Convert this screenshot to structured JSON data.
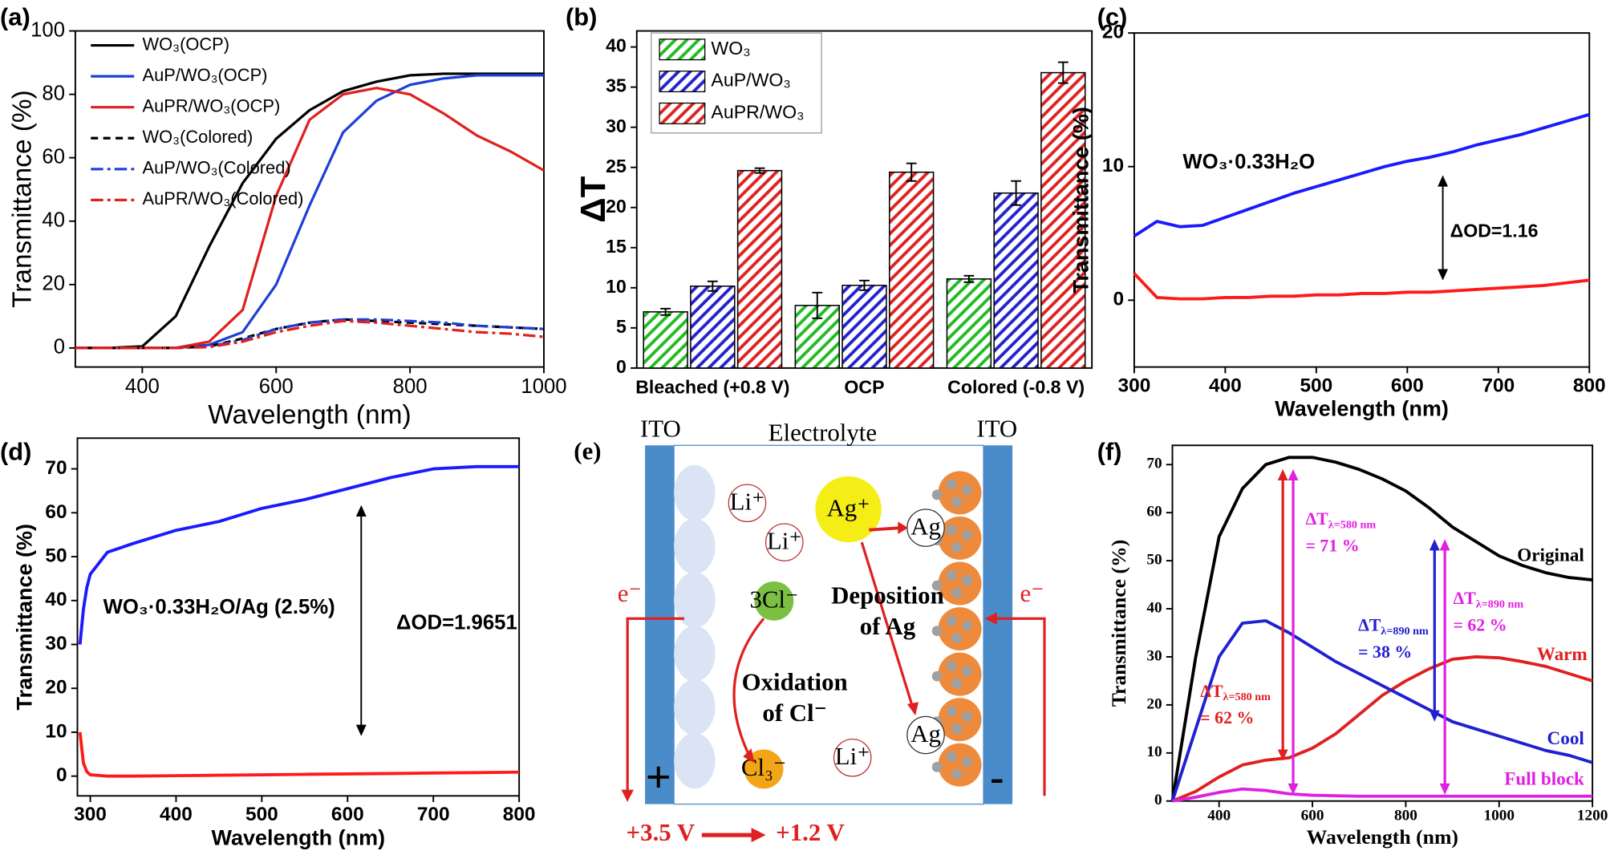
{
  "chart_data": [
    {
      "type": "line",
      "panel": "(a)",
      "xlabel": "Wavelength (nm)",
      "ylabel": "Transmittance (%)",
      "x": [
        300,
        350,
        400,
        450,
        500,
        550,
        600,
        650,
        700,
        750,
        800,
        850,
        900,
        950,
        1000
      ],
      "xlim": [
        300,
        1000
      ],
      "xticks": [
        400,
        600,
        800,
        1000
      ],
      "ylim": [
        -6,
        100
      ],
      "yticks": [
        0,
        20,
        40,
        60,
        80,
        100
      ],
      "legend": "upper left",
      "series": [
        {
          "name": "WO₃(OCP)",
          "color": "#000000",
          "dash": "solid",
          "values": [
            0,
            0,
            0.5,
            10,
            32,
            52,
            66,
            75,
            81,
            84,
            86,
            86.5,
            86.5,
            86.5,
            86.5
          ]
        },
        {
          "name": "AuP/WO₃(OCP)",
          "color": "#1f3fd6",
          "dash": "solid",
          "values": [
            0,
            0,
            0,
            0,
            1,
            5,
            20,
            45,
            68,
            78,
            83,
            85,
            86,
            86,
            86
          ]
        },
        {
          "name": "AuPR/WO₃(OCP)",
          "color": "#e0201c",
          "dash": "solid",
          "values": [
            0,
            0,
            0,
            0,
            2,
            12,
            48,
            72,
            80,
            82,
            80,
            74,
            67,
            62,
            56
          ]
        },
        {
          "name": "WO₃(Colored)",
          "color": "#000000",
          "dash": "dash",
          "values": [
            0,
            0,
            0,
            0,
            0.5,
            3,
            6,
            8,
            9,
            8.5,
            8,
            7.5,
            7,
            6.5,
            6
          ]
        },
        {
          "name": "AuP/WO₃(Colored)",
          "color": "#1f3fd6",
          "dash": "dashdot",
          "values": [
            0,
            0,
            0,
            0,
            0.5,
            2.5,
            6,
            8,
            9,
            9,
            8.5,
            8,
            7,
            6.5,
            6
          ]
        },
        {
          "name": "AuPR/WO₃(Colored)",
          "color": "#e0201c",
          "dash": "dashdot",
          "values": [
            0,
            0,
            0,
            0,
            0.3,
            2,
            5,
            7,
            8.5,
            8,
            7,
            6,
            5,
            4.5,
            3.5
          ]
        }
      ]
    },
    {
      "type": "bar",
      "panel": "(b)",
      "ylabel": "ΔT",
      "categories": [
        "Bleached (+0.8 V)",
        "OCP",
        "Colored (-0.8 V)"
      ],
      "ylim": [
        0,
        42
      ],
      "yticks": [
        0,
        5,
        10,
        15,
        20,
        25,
        30,
        35,
        40
      ],
      "legend": "upper left",
      "series": [
        {
          "name": "WO₃",
          "color": "#22bb22",
          "values": [
            7,
            7.8,
            11.1
          ],
          "errors": [
            0.4,
            1.6,
            0.4
          ]
        },
        {
          "name": "AuP/WO₃",
          "color": "#2222cc",
          "values": [
            10.2,
            10.3,
            21.8
          ],
          "errors": [
            0.6,
            0.6,
            1.5
          ]
        },
        {
          "name": "AuPR/WO₃",
          "color": "#dd2222",
          "values": [
            24.6,
            24.4,
            36.8
          ],
          "errors": [
            0.3,
            1.1,
            1.3
          ]
        }
      ]
    },
    {
      "type": "line",
      "panel": "(c)",
      "xlabel": "Wavelength (nm)",
      "ylabel": "Transmittance (%)",
      "x": [
        300,
        325,
        350,
        375,
        400,
        425,
        450,
        475,
        500,
        525,
        550,
        575,
        600,
        625,
        650,
        675,
        700,
        725,
        750,
        775,
        800
      ],
      "xlim": [
        300,
        800
      ],
      "xticks": [
        300,
        400,
        500,
        600,
        700,
        800
      ],
      "ylim": [
        -5,
        20
      ],
      "yticks": [
        0,
        10,
        20
      ],
      "series": [
        {
          "color": "#1a1aff",
          "dash": "solid",
          "values": [
            4.8,
            5.9,
            5.5,
            5.6,
            6.2,
            6.8,
            7.4,
            8.0,
            8.5,
            9.0,
            9.5,
            10.0,
            10.4,
            10.7,
            11.1,
            11.6,
            12.0,
            12.4,
            12.9,
            13.4,
            13.9
          ]
        },
        {
          "color": "#ff1a1a",
          "dash": "solid",
          "values": [
            2.0,
            0.2,
            0.1,
            0.1,
            0.2,
            0.2,
            0.3,
            0.3,
            0.4,
            0.4,
            0.5,
            0.5,
            0.6,
            0.6,
            0.7,
            0.8,
            0.9,
            1.0,
            1.1,
            1.3,
            1.5
          ]
        }
      ],
      "annotations": [
        "WO₃·0.33H₂O",
        "ΔOD=1.16"
      ]
    },
    {
      "type": "line",
      "panel": "(d)",
      "xlabel": "Wavelength (nm)",
      "ylabel": "Transmittance (%)",
      "x": [
        288,
        292,
        296,
        300,
        320,
        350,
        400,
        450,
        500,
        550,
        600,
        650,
        700,
        750,
        800
      ],
      "xlim": [
        285,
        800
      ],
      "xticks": [
        300,
        400,
        500,
        600,
        700,
        800
      ],
      "ylim": [
        -4.5,
        77
      ],
      "yticks": [
        0,
        10,
        20,
        30,
        40,
        50,
        60,
        70
      ],
      "series": [
        {
          "color": "#1a1aff",
          "dash": "solid",
          "values": [
            30,
            38,
            43,
            46,
            51,
            53,
            56,
            58,
            61,
            63,
            65.5,
            68,
            70,
            70.5,
            70.5
          ]
        },
        {
          "color": "#ff1a1a",
          "dash": "solid",
          "values": [
            10,
            3,
            1,
            0.3,
            0,
            0,
            0.1,
            0.2,
            0.3,
            0.4,
            0.5,
            0.6,
            0.7,
            0.8,
            0.9
          ]
        }
      ],
      "annotations": [
        "WO₃·0.33H₂O/Ag (2.5%)",
        "ΔOD=1.9651"
      ]
    },
    {
      "type": "line",
      "panel": "(f)",
      "xlabel": "Wavelength (nm)",
      "ylabel": "Transmittance (%)",
      "x": [
        300,
        350,
        400,
        450,
        500,
        550,
        600,
        650,
        700,
        750,
        800,
        850,
        900,
        950,
        1000,
        1050,
        1100,
        1150,
        1200
      ],
      "xlim": [
        300,
        1200
      ],
      "xticks": [
        400,
        600,
        800,
        1000,
        1200
      ],
      "ylim": [
        0,
        74
      ],
      "yticks": [
        0,
        10,
        20,
        30,
        40,
        50,
        60,
        70
      ],
      "legend": "inline",
      "series": [
        {
          "name": "Original",
          "color": "#000000",
          "dash": "solid",
          "values": [
            0,
            30,
            55,
            65,
            70,
            71.5,
            71.5,
            70.5,
            69,
            67,
            64.5,
            61,
            57,
            54,
            51,
            49,
            47.5,
            46.5,
            46
          ]
        },
        {
          "name": "Warm",
          "color": "#e02020",
          "dash": "solid",
          "values": [
            0,
            2,
            5,
            7.5,
            8.5,
            9,
            11,
            14,
            18,
            22,
            25,
            27.5,
            29.5,
            30,
            29.8,
            29,
            28,
            26.5,
            25
          ]
        },
        {
          "name": "Cool",
          "color": "#2020d0",
          "dash": "solid",
          "values": [
            0,
            15,
            30,
            37,
            37.5,
            35,
            32,
            29,
            26.5,
            24,
            21.5,
            19,
            16.5,
            15,
            13.5,
            12,
            10.5,
            9.5,
            8
          ]
        },
        {
          "name": "Full block",
          "color": "#e020e0",
          "dash": "solid",
          "values": [
            0,
            0.8,
            1.8,
            2.5,
            2.2,
            1.5,
            1.2,
            1.1,
            1,
            1,
            1,
            1,
            1,
            1,
            1,
            1,
            1,
            1,
            1
          ]
        }
      ],
      "annotations": [
        {
          "text": "ΔT",
          "sub": "λ=580 nm",
          "line2": "= 71 %",
          "color": "#e020e0"
        },
        {
          "text": "ΔT",
          "sub": "λ=890 nm",
          "line2": "= 38 %",
          "color": "#2020d0"
        },
        {
          "text": "ΔT",
          "sub": "λ=890 nm",
          "line2": "= 62 %",
          "color": "#e020e0"
        },
        {
          "text": "ΔT",
          "sub": "λ=580 nm",
          "line2": "= 62 %",
          "color": "#e02020"
        }
      ]
    }
  ],
  "diagram": {
    "panel": "(e)",
    "ito_left": "ITO",
    "electrolyte": "Electrolyte",
    "ito_right": "ITO",
    "ions": [
      "Li⁺",
      "Li⁺",
      "Li⁺"
    ],
    "ag_ion": "Ag⁺",
    "ag": [
      "Ag",
      "Ag"
    ],
    "chloride": "3Cl⁻",
    "trichloride": "Cl₃⁻",
    "deposition": [
      "Deposition",
      "of Ag"
    ],
    "oxidation": [
      "Oxidation",
      "of Cl⁻"
    ],
    "electrons": [
      "e⁻",
      "e⁻"
    ],
    "plus": "+",
    "minus": "-",
    "voltage_start": "+3.5 V",
    "voltage_end": "+1.2 V"
  }
}
